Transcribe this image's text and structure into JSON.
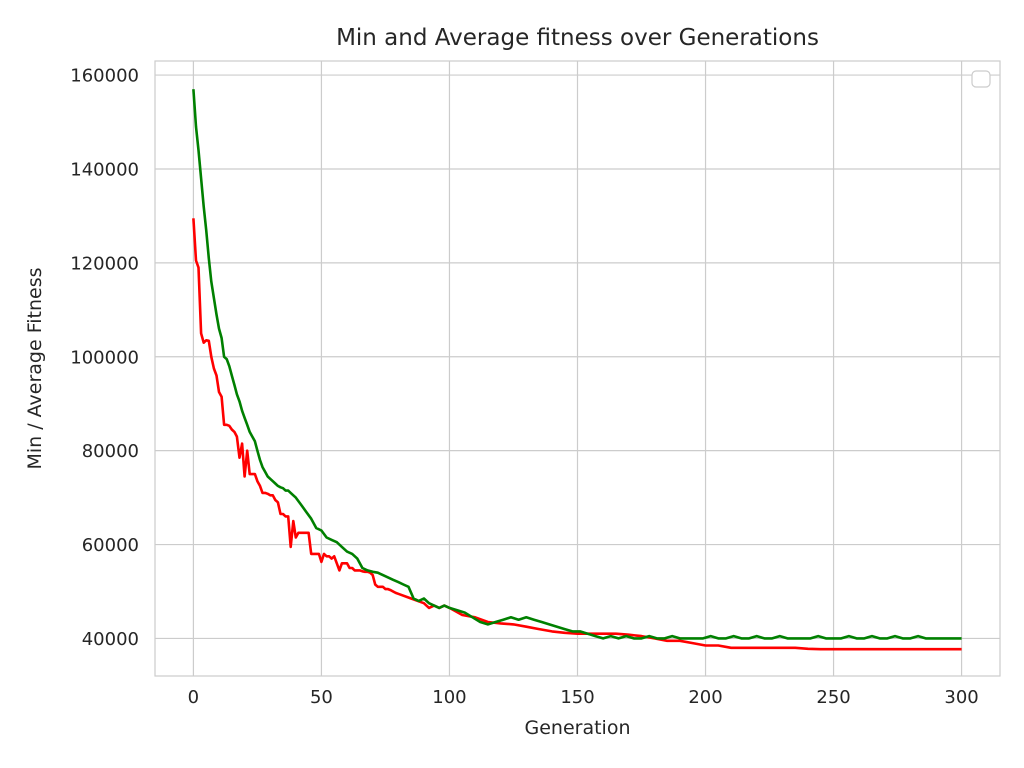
{
  "chart_data": {
    "type": "line",
    "title": "Min and Average fitness over Generations",
    "xlabel": "Generation",
    "ylabel": "Min / Average Fitness",
    "xlim": [
      -15,
      315
    ],
    "ylim": [
      32000,
      163000
    ],
    "xticks": [
      0,
      50,
      100,
      150,
      200,
      250,
      300
    ],
    "yticks": [
      40000,
      60000,
      80000,
      100000,
      120000,
      140000,
      160000
    ],
    "grid": true,
    "legend": "top-right (empty)",
    "series": [
      {
        "color": "#ff0000",
        "x": [
          0,
          1,
          2,
          3,
          4,
          5,
          6,
          7,
          8,
          9,
          10,
          11,
          12,
          13,
          14,
          15,
          16,
          17,
          18,
          19,
          20,
          21,
          22,
          23,
          24,
          25,
          26,
          27,
          28,
          29,
          30,
          31,
          32,
          33,
          34,
          35,
          36,
          37,
          38,
          39,
          40,
          41,
          42,
          43,
          44,
          45,
          46,
          47,
          48,
          49,
          50,
          51,
          52,
          53,
          54,
          55,
          56,
          57,
          58,
          59,
          60,
          61,
          62,
          63,
          64,
          65,
          66,
          67,
          68,
          69,
          70,
          71,
          72,
          73,
          74,
          75,
          76,
          77,
          78,
          79,
          80,
          85,
          90,
          92,
          94,
          96,
          98,
          100,
          105,
          110,
          115,
          120,
          125,
          130,
          135,
          140,
          145,
          150,
          155,
          160,
          165,
          170,
          175,
          180,
          185,
          190,
          195,
          200,
          205,
          210,
          215,
          220,
          225,
          230,
          235,
          240,
          245,
          250,
          255,
          260,
          265,
          270,
          275,
          280,
          285,
          290,
          295,
          300
        ],
        "values": [
          129500,
          120500,
          119000,
          105000,
          103000,
          103500,
          103400,
          100000,
          97500,
          96000,
          92500,
          91500,
          85500,
          85500,
          85300,
          84500,
          84000,
          83000,
          78500,
          81500,
          74500,
          80000,
          75000,
          75000,
          75000,
          73500,
          72500,
          71000,
          71000,
          70800,
          70500,
          70500,
          69500,
          69000,
          66500,
          66500,
          66000,
          66000,
          59500,
          65000,
          61500,
          62500,
          62500,
          62500,
          62500,
          62500,
          58000,
          58000,
          58000,
          58000,
          56300,
          58000,
          57500,
          57500,
          57000,
          57500,
          56000,
          54500,
          56000,
          56000,
          56000,
          55000,
          55000,
          54500,
          54500,
          54500,
          54300,
          54200,
          54200,
          54000,
          53500,
          51500,
          51000,
          51000,
          51000,
          50500,
          50500,
          50300,
          50000,
          49700,
          49500,
          48500,
          47500,
          46500,
          47000,
          46500,
          47000,
          46500,
          45000,
          44500,
          43500,
          43200,
          43000,
          42500,
          42000,
          41500,
          41200,
          41000,
          41000,
          41000,
          41000,
          40800,
          40500,
          40000,
          39500,
          39500,
          39000,
          38500,
          38500,
          38000,
          38000,
          38000,
          38000,
          38000,
          38000,
          37800,
          37700,
          37700,
          37700,
          37700,
          37700,
          37700,
          37700,
          37700,
          37700,
          37700,
          37700,
          37700
        ]
      },
      {
        "color": "#008000",
        "x": [
          0,
          1,
          2,
          3,
          4,
          5,
          6,
          7,
          8,
          9,
          10,
          11,
          12,
          13,
          14,
          15,
          16,
          17,
          18,
          19,
          20,
          21,
          22,
          23,
          24,
          25,
          26,
          27,
          28,
          29,
          30,
          31,
          32,
          33,
          34,
          35,
          36,
          37,
          38,
          39,
          40,
          42,
          44,
          46,
          48,
          50,
          52,
          54,
          56,
          58,
          60,
          62,
          64,
          66,
          68,
          70,
          72,
          74,
          76,
          78,
          80,
          82,
          84,
          86,
          88,
          90,
          92,
          94,
          96,
          98,
          100,
          103,
          106,
          109,
          112,
          115,
          118,
          121,
          124,
          127,
          130,
          133,
          136,
          139,
          142,
          145,
          148,
          151,
          154,
          157,
          160,
          163,
          166,
          169,
          172,
          175,
          178,
          181,
          184,
          187,
          190,
          193,
          196,
          199,
          202,
          205,
          208,
          211,
          214,
          217,
          220,
          223,
          226,
          229,
          232,
          235,
          238,
          241,
          244,
          247,
          250,
          253,
          256,
          259,
          262,
          265,
          268,
          271,
          274,
          277,
          280,
          283,
          286,
          289,
          292,
          295,
          298,
          300
        ],
        "values": [
          157000,
          149000,
          144000,
          138000,
          132000,
          127000,
          121000,
          116000,
          112500,
          109000,
          106000,
          104000,
          100000,
          99500,
          98000,
          96000,
          94000,
          92000,
          90500,
          88500,
          87000,
          85500,
          84000,
          83000,
          82000,
          80000,
          78000,
          76500,
          75500,
          74500,
          74000,
          73500,
          73000,
          72500,
          72200,
          72000,
          71500,
          71500,
          71000,
          70500,
          70000,
          68500,
          67000,
          65500,
          63500,
          63000,
          61500,
          61000,
          60500,
          59500,
          58500,
          58000,
          57000,
          55000,
          54500,
          54200,
          54000,
          53500,
          53000,
          52500,
          52000,
          51500,
          51000,
          48500,
          48000,
          48500,
          47500,
          47000,
          46500,
          47000,
          46500,
          46000,
          45500,
          44500,
          43500,
          43000,
          43500,
          44000,
          44500,
          44000,
          44500,
          44000,
          43500,
          43000,
          42500,
          42000,
          41500,
          41500,
          41000,
          40500,
          40000,
          40500,
          40000,
          40500,
          40000,
          40000,
          40500,
          40000,
          40000,
          40500,
          40000,
          40000,
          40000,
          40000,
          40500,
          40000,
          40000,
          40500,
          40000,
          40000,
          40500,
          40000,
          40000,
          40500,
          40000,
          40000,
          40000,
          40000,
          40500,
          40000,
          40000,
          40000,
          40500,
          40000,
          40000,
          40500,
          40000,
          40000,
          40500,
          40000,
          40000,
          40500,
          40000,
          40000,
          40000,
          40000,
          40000,
          40000
        ]
      }
    ]
  }
}
